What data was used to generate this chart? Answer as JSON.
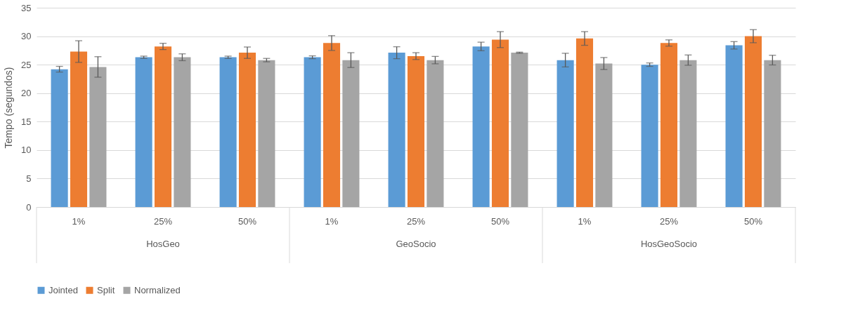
{
  "chart_data": {
    "type": "bar",
    "ylabel": "Tempo (segundos)",
    "categories": [
      "1%",
      "25%",
      "50%",
      "1%",
      "25%",
      "50%",
      "1%",
      "25%",
      "50%"
    ],
    "annotations": [
      "HosGeo",
      "GeoSocio",
      "HosGeoSocio"
    ],
    "series": [
      {
        "name": "Jointed",
        "color": "#5b9bd5",
        "values": [
          24.2,
          26.3,
          26.3,
          26.3,
          27.1,
          28.2,
          25.8,
          25.0,
          28.4
        ],
        "errors": [
          0.5,
          0.2,
          0.2,
          0.25,
          1.05,
          0.75,
          1.2,
          0.3,
          0.65
        ]
      },
      {
        "name": "Split",
        "color": "#ed7d31",
        "values": [
          27.3,
          28.2,
          27.1,
          28.8,
          26.5,
          29.4,
          29.6,
          28.8,
          30.0
        ],
        "errors": [
          1.9,
          0.55,
          1.0,
          1.3,
          0.6,
          1.4,
          1.2,
          0.55,
          1.15
        ]
      },
      {
        "name": "Normalized",
        "color": "#a5a5a5",
        "values": [
          24.6,
          26.3,
          25.8,
          25.8,
          25.8,
          27.1,
          25.2,
          25.8,
          25.8
        ],
        "errors": [
          1.8,
          0.6,
          0.3,
          1.3,
          0.65,
          0.1,
          1.05,
          0.9,
          0.85
        ]
      }
    ],
    "ylim": [
      0,
      35
    ],
    "yticks": [
      0,
      5,
      10,
      15,
      20,
      25,
      30,
      35
    ],
    "grid": "y",
    "legend": "bottom"
  }
}
